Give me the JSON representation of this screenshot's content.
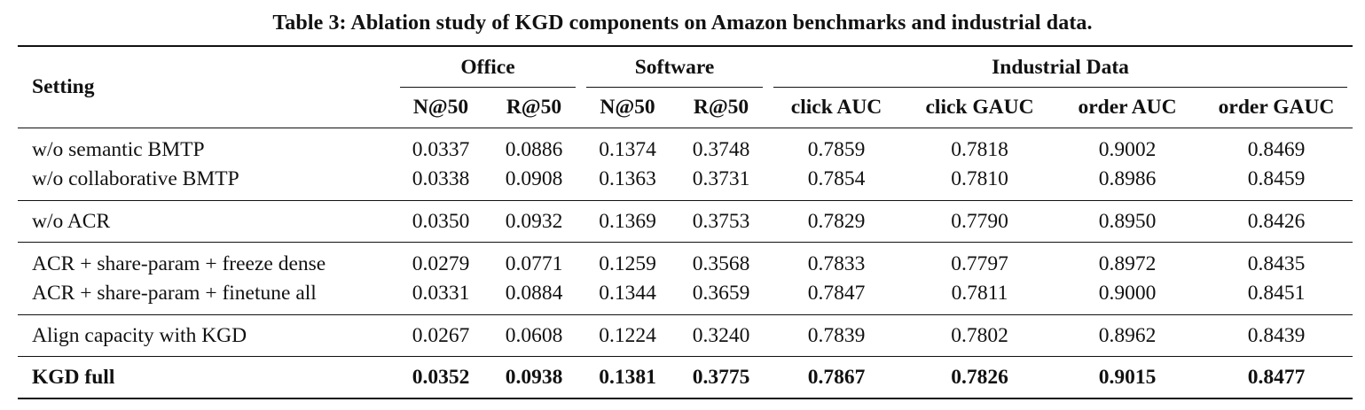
{
  "caption": "Table 3: Ablation study of KGD components on Amazon benchmarks and industrial data.",
  "header": {
    "setting": "Setting",
    "groups": [
      "Office",
      "Software",
      "Industrial Data"
    ],
    "columns": [
      "N@50",
      "R@50",
      "N@50",
      "R@50",
      "click AUC",
      "click GAUC",
      "order AUC",
      "order GAUC"
    ]
  },
  "rows": [
    {
      "label": "w/o semantic BMTP",
      "values": [
        "0.0337",
        "0.0886",
        "0.1374",
        "0.3748",
        "0.7859",
        "0.7818",
        "0.9002",
        "0.8469"
      ]
    },
    {
      "label": "w/o collaborative BMTP",
      "values": [
        "0.0338",
        "0.0908",
        "0.1363",
        "0.3731",
        "0.7854",
        "0.7810",
        "0.8986",
        "0.8459"
      ]
    },
    {
      "label": "w/o ACR",
      "values": [
        "0.0350",
        "0.0932",
        "0.1369",
        "0.3753",
        "0.7829",
        "0.7790",
        "0.8950",
        "0.8426"
      ]
    },
    {
      "label": "ACR + share-param + freeze dense",
      "values": [
        "0.0279",
        "0.0771",
        "0.1259",
        "0.3568",
        "0.7833",
        "0.7797",
        "0.8972",
        "0.8435"
      ]
    },
    {
      "label": "ACR + share-param + finetune all",
      "values": [
        "0.0331",
        "0.0884",
        "0.1344",
        "0.3659",
        "0.7847",
        "0.7811",
        "0.9000",
        "0.8451"
      ]
    },
    {
      "label": "Align capacity with KGD",
      "values": [
        "0.0267",
        "0.0608",
        "0.1224",
        "0.3240",
        "0.7839",
        "0.7802",
        "0.8962",
        "0.8439"
      ]
    },
    {
      "label": "KGD full",
      "values": [
        "0.0352",
        "0.0938",
        "0.1381",
        "0.3775",
        "0.7867",
        "0.7826",
        "0.9015",
        "0.8477"
      ]
    }
  ]
}
